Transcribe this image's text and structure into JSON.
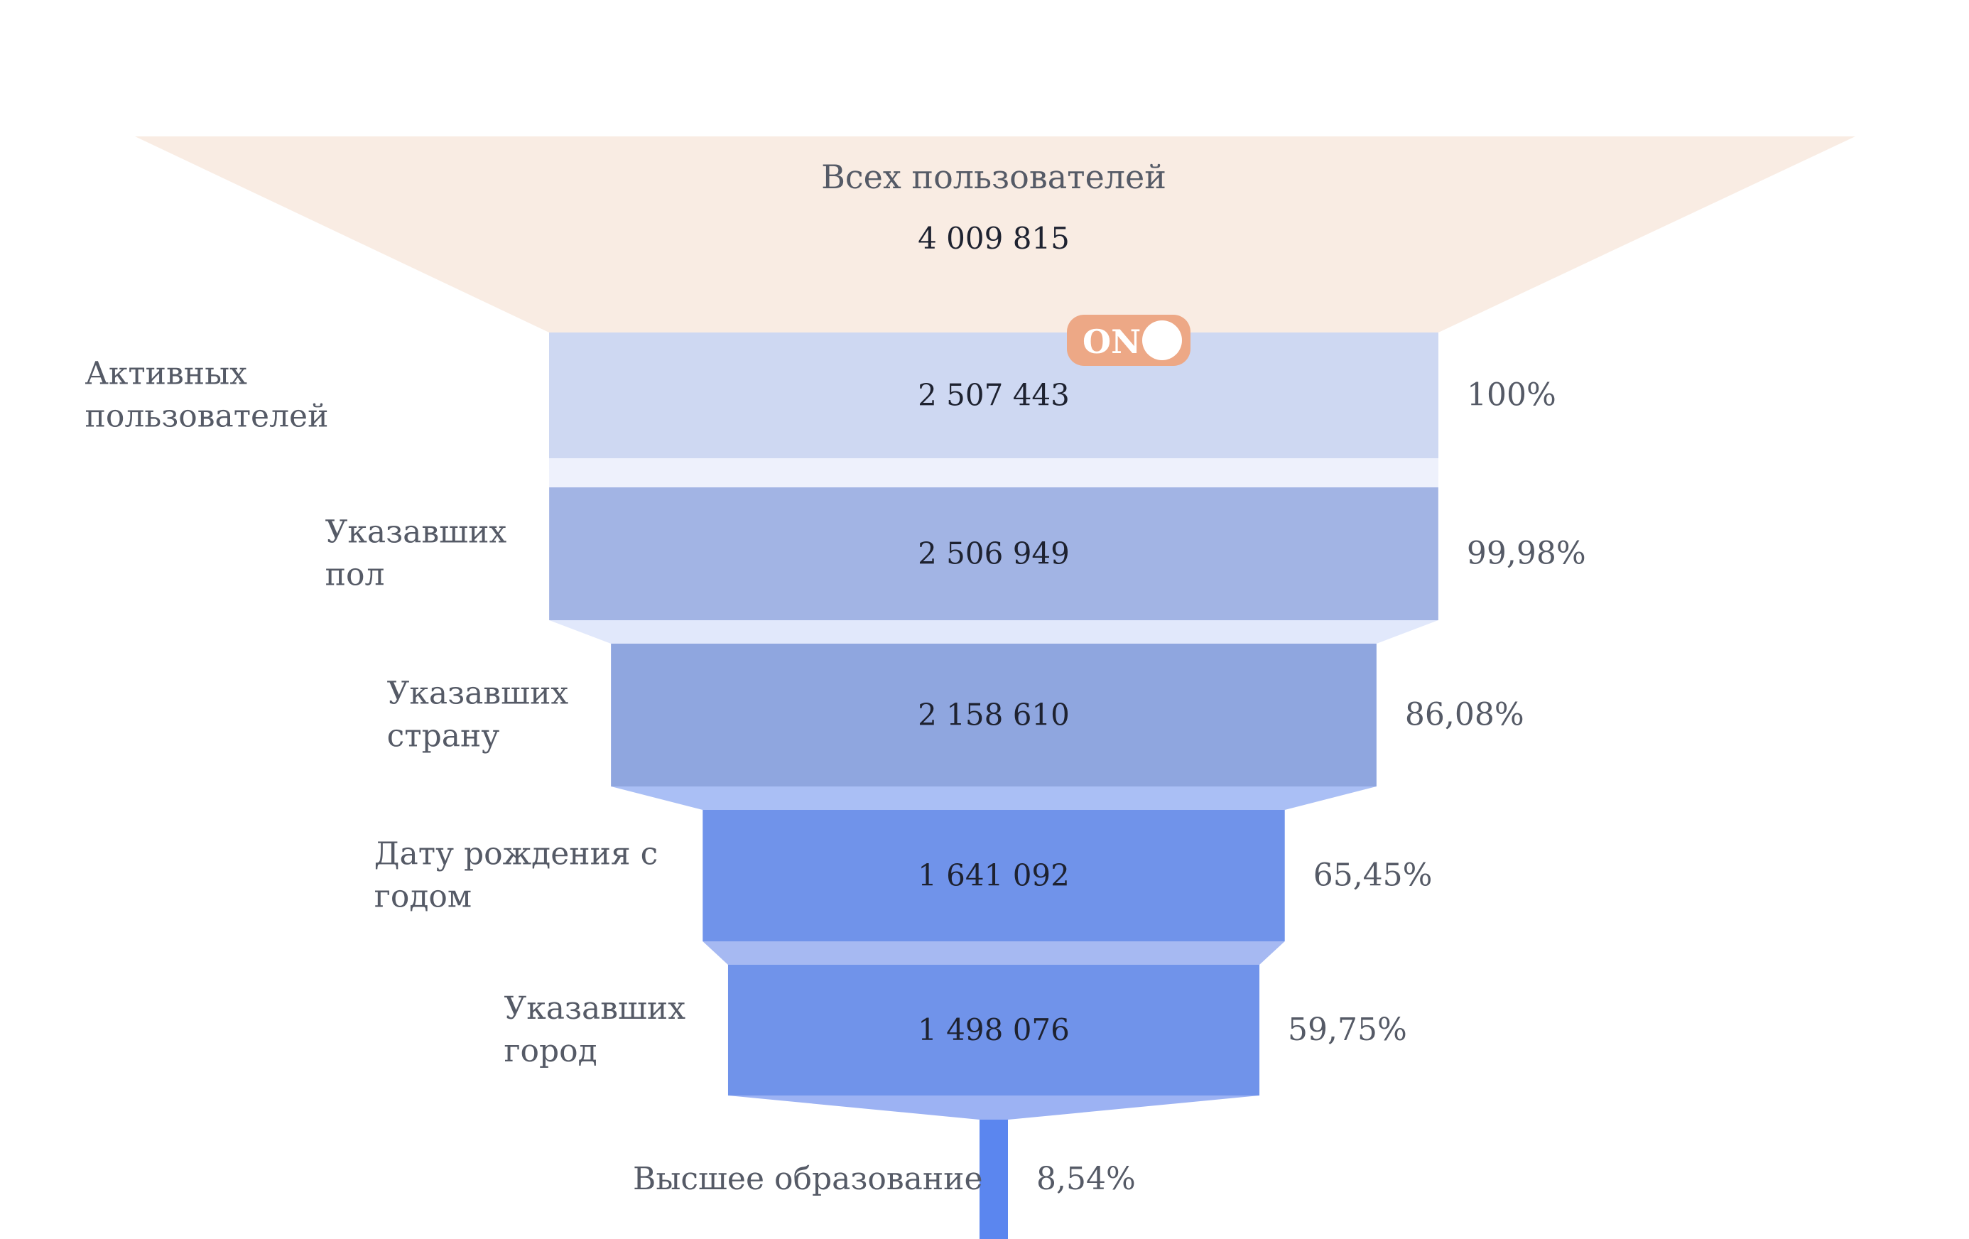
{
  "chart_data": {
    "type": "funnel",
    "top": {
      "label": "Всех пользователей",
      "value": 4009815,
      "value_label": "4 009 815",
      "color": "#f9ece3"
    },
    "toggle": {
      "label": "ON",
      "state": "on",
      "color": "#eda886"
    },
    "stages": [
      {
        "label_lines": [
          "Активных",
          "пользователей"
        ],
        "value": 2507443,
        "value_label": "2 507 443",
        "percent": 100,
        "percent_label": "100%",
        "color": "#ced8f2",
        "connector_color": "#eef1fc"
      },
      {
        "label_lines": [
          "Указавших",
          "пол"
        ],
        "value": 2506949,
        "value_label": "2 506 949",
        "percent": 99.98,
        "percent_label": "99,98%",
        "color": "#a2b4e4",
        "connector_color": "#e1e8fb"
      },
      {
        "label_lines": [
          "Указавших",
          "страну"
        ],
        "value": 2158610,
        "value_label": "2 158 610",
        "percent": 86.08,
        "percent_label": "86,08%",
        "color": "#8fa6df",
        "connector_color": "#aabff5"
      },
      {
        "label_lines": [
          "Дату рождения с",
          "годом"
        ],
        "value": 1641092,
        "value_label": "1 641 092",
        "percent": 65.45,
        "percent_label": "65,45%",
        "color": "#7093ea",
        "connector_color": "#a6b9f2"
      },
      {
        "label_lines": [
          "Указавших",
          "город"
        ],
        "value": 1498076,
        "value_label": "1 498 076",
        "percent": 59.75,
        "percent_label": "59,75%",
        "color": "#7093ea",
        "connector_color": "#9cb2f3"
      },
      {
        "label_lines": [
          "Высшее образование"
        ],
        "value": null,
        "value_label": "",
        "percent": 8.54,
        "percent_label": "8,54%",
        "color": "#5b86ef",
        "connector_color": null
      }
    ]
  }
}
